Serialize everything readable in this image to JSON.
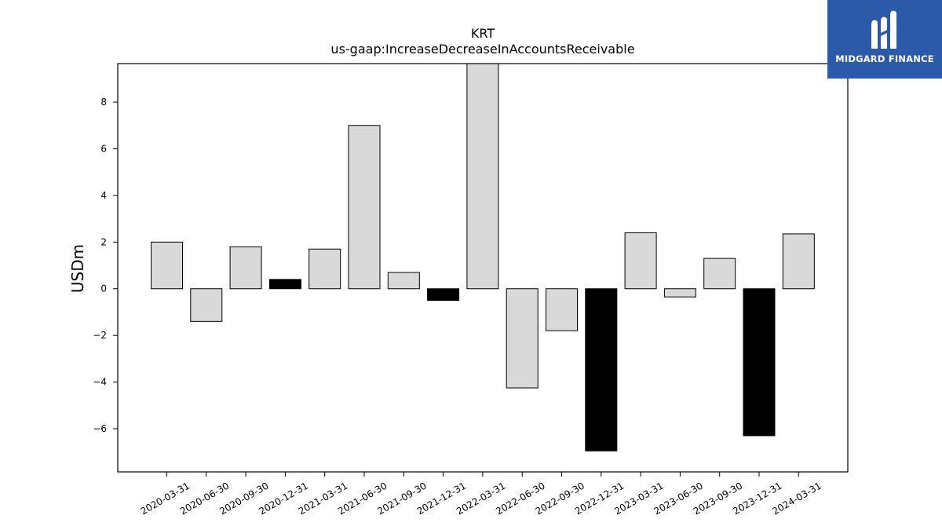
{
  "chart_data": {
    "type": "bar",
    "title": "KRT",
    "subtitle": "us-gaap:IncreaseDecreaseInAccountsReceivable",
    "xlabel": "",
    "ylabel": "USDm",
    "ylim": [
      -7.85,
      9.65
    ],
    "yticks": [
      8,
      6,
      4,
      2,
      0,
      -2,
      -4,
      -6
    ],
    "ytick_labels": [
      "8",
      "6",
      "4",
      "2",
      "0",
      "−2",
      "−4",
      "−6"
    ],
    "grid": false,
    "categories": [
      "2020-03-31",
      "2020-06-30",
      "2020-09-30",
      "2020-12-31",
      "2021-03-31",
      "2021-06-30",
      "2021-09-30",
      "2021-12-31",
      "2022-03-31",
      "2022-06-30",
      "2022-09-30",
      "2022-12-31",
      "2023-03-31",
      "2023-06-30",
      "2023-09-30",
      "2023-12-31",
      "2024-03-31"
    ],
    "values": [
      2.0,
      -1.4,
      1.8,
      0.4,
      1.7,
      7.0,
      0.7,
      -0.5,
      9.8,
      -4.25,
      -1.8,
      -6.95,
      2.4,
      -0.35,
      1.3,
      -6.3,
      2.35
    ],
    "highlight": [
      false,
      false,
      false,
      true,
      false,
      false,
      false,
      true,
      false,
      false,
      false,
      true,
      false,
      false,
      false,
      true,
      false
    ],
    "colors": {
      "normal": "#d9d9d9",
      "highlight": "#000000",
      "edge": "#000000"
    }
  },
  "logo": {
    "text": "MIDGARD FINANCE",
    "background": "#2d5aa8"
  }
}
